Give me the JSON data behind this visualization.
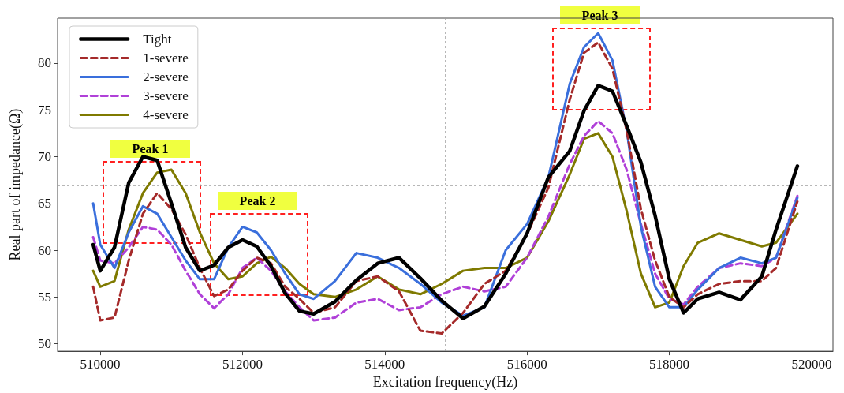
{
  "chart_data": {
    "type": "line",
    "xlabel": "Excitation frequency(Hz)",
    "ylabel": "Real part of impedance(Ω)",
    "x": [
      509900,
      510000,
      510200,
      510400,
      510600,
      510800,
      511000,
      511200,
      511400,
      511600,
      511800,
      512000,
      512200,
      512400,
      512600,
      512800,
      513000,
      513300,
      513600,
      513900,
      514200,
      514500,
      514800,
      515100,
      515400,
      515700,
      516000,
      516300,
      516600,
      516800,
      517000,
      517200,
      517400,
      517600,
      517800,
      518000,
      518200,
      518400,
      518700,
      519000,
      519300,
      519500,
      519800
    ],
    "series": [
      {
        "name": "Tight",
        "color": "#000000",
        "line_style": "solid",
        "values": [
          60.6,
          57.8,
          60.3,
          67.2,
          70.0,
          69.6,
          65.0,
          60.3,
          57.8,
          58.4,
          60.3,
          61.1,
          60.4,
          58.3,
          55.4,
          53.5,
          53.2,
          54.5,
          56.8,
          58.6,
          59.2,
          57.0,
          54.6,
          52.7,
          54.0,
          57.5,
          61.8,
          67.8,
          70.6,
          74.9,
          77.6,
          77.0,
          73.3,
          69.4,
          63.7,
          56.9,
          53.3,
          54.8,
          55.5,
          54.7,
          57.2,
          62.2,
          69.0
        ]
      },
      {
        "name": "1-severe",
        "color": "#a52a2a",
        "line_style": "dashed",
        "values": [
          56.1,
          52.5,
          52.8,
          58.9,
          63.9,
          66.1,
          64.4,
          61.7,
          58.1,
          55.1,
          55.8,
          57.8,
          59.2,
          58.6,
          56.1,
          54.8,
          53.3,
          53.9,
          56.7,
          57.2,
          55.6,
          51.4,
          51.1,
          53.3,
          56.4,
          57.8,
          61.7,
          66.7,
          76.1,
          81.1,
          82.2,
          79.4,
          72.8,
          64.4,
          58.9,
          55.0,
          53.9,
          55.3,
          56.4,
          56.7,
          56.7,
          58.1,
          65.2
        ]
      },
      {
        "name": "2-severe",
        "color": "#3a6fdc",
        "line_style": "solid",
        "values": [
          65.0,
          60.6,
          58.1,
          61.9,
          64.7,
          63.9,
          61.4,
          58.9,
          56.9,
          56.9,
          60.3,
          62.5,
          61.9,
          60.0,
          57.5,
          55.3,
          54.8,
          56.7,
          59.7,
          59.2,
          58.1,
          56.4,
          54.4,
          53.0,
          53.9,
          60.0,
          62.8,
          67.8,
          77.8,
          81.7,
          83.2,
          80.3,
          72.8,
          62.5,
          56.1,
          53.9,
          53.9,
          55.8,
          58.1,
          59.2,
          58.6,
          59.2,
          65.6
        ]
      },
      {
        "name": "3-severe",
        "color": "#b040d8",
        "line_style": "dashed",
        "values": [
          61.4,
          58.9,
          58.6,
          60.3,
          62.5,
          62.2,
          60.6,
          57.8,
          55.3,
          53.8,
          55.3,
          58.1,
          59.2,
          57.8,
          55.6,
          53.9,
          52.5,
          52.8,
          54.4,
          54.8,
          53.6,
          53.9,
          55.3,
          56.1,
          55.6,
          56.1,
          59.2,
          63.6,
          69.2,
          72.2,
          73.8,
          72.5,
          68.6,
          62.8,
          57.5,
          54.8,
          54.2,
          56.1,
          58.1,
          58.6,
          58.3,
          59.2,
          65.8
        ]
      },
      {
        "name": "4-severe",
        "color": "#7f7a00",
        "line_style": "solid",
        "values": [
          57.8,
          56.1,
          56.7,
          62.2,
          66.1,
          68.3,
          68.6,
          66.1,
          61.9,
          58.6,
          56.9,
          57.2,
          58.6,
          59.3,
          58.1,
          56.4,
          55.3,
          55.0,
          55.8,
          57.2,
          55.8,
          55.3,
          56.4,
          57.8,
          58.1,
          58.1,
          59.2,
          63.1,
          68.1,
          71.9,
          72.5,
          70.0,
          64.2,
          57.5,
          53.9,
          54.4,
          58.3,
          60.8,
          61.8,
          61.1,
          60.4,
          60.8,
          63.9
        ]
      }
    ],
    "xlim": [
      509400,
      520300
    ],
    "xticks": [
      510000,
      512000,
      514000,
      516000,
      518000,
      520000
    ],
    "ylim": [
      49.2,
      84.8
    ],
    "yticks": [
      50,
      55,
      60,
      65,
      70,
      75,
      80
    ],
    "ref_lines": [
      {
        "axis": "x",
        "value": 514850,
        "label": null,
        "color": "#a0a0a0",
        "line_style": "dotted"
      },
      {
        "axis": "y",
        "value": 66.9,
        "label": null,
        "color": "#a0a0a0",
        "line_style": "dotted"
      }
    ],
    "annotations": [
      "Peak 1",
      "Peak 2",
      "Peak 3"
    ],
    "grid": false,
    "legend": "top left",
    "marker": "none"
  }
}
